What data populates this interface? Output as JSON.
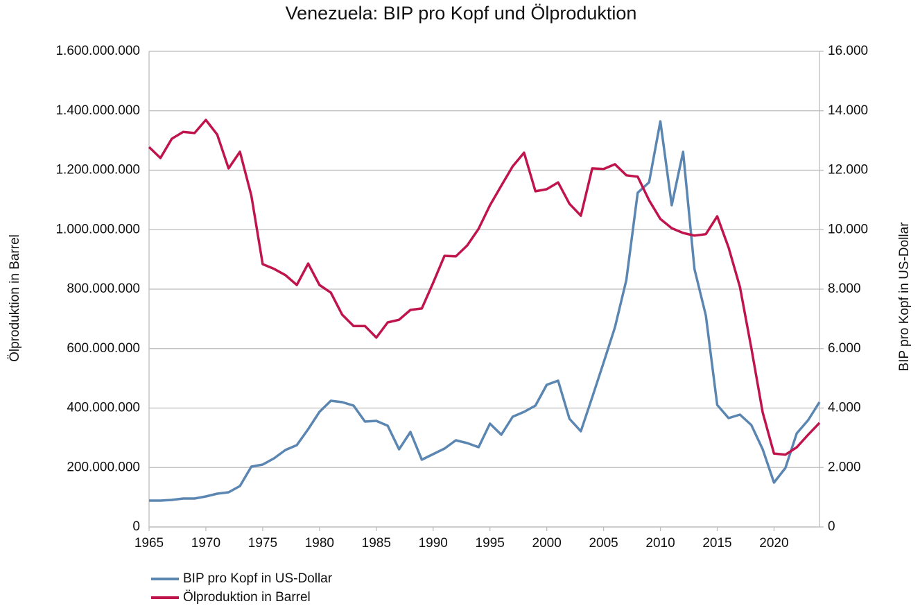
{
  "chart_data": {
    "type": "line",
    "title": "Venezuela: BIP pro Kopf und Ölproduktion",
    "ylabel": "Ölproduktion in Barrel",
    "y2label": "BIP pro Kopf in US-Dollar",
    "x": [
      1965,
      1966,
      1967,
      1968,
      1969,
      1970,
      1971,
      1972,
      1973,
      1974,
      1975,
      1976,
      1977,
      1978,
      1979,
      1980,
      1981,
      1982,
      1983,
      1984,
      1985,
      1986,
      1987,
      1988,
      1989,
      1990,
      1991,
      1992,
      1993,
      1994,
      1995,
      1996,
      1997,
      1998,
      1999,
      2000,
      2001,
      2002,
      2003,
      2004,
      2005,
      2006,
      2007,
      2008,
      2009,
      2010,
      2011,
      2012,
      2013,
      2014,
      2015,
      2016,
      2017,
      2018,
      2019,
      2020,
      2021,
      2022,
      2023,
      2024
    ],
    "xlim": [
      1965,
      2024
    ],
    "xticks": [
      1965,
      1970,
      1975,
      1980,
      1985,
      1990,
      1995,
      2000,
      2005,
      2010,
      2015,
      2020
    ],
    "ylim": [
      0,
      1600000000
    ],
    "yticks": [
      0,
      {
        "value": 200000000,
        "label": "200.000.000"
      },
      {
        "value": 400000000,
        "label": "400.000.000"
      },
      {
        "value": 600000000,
        "label": "600.000.000"
      },
      {
        "value": 800000000,
        "label": "800.000.000"
      },
      {
        "value": 1000000000,
        "label": "1.000.000.000"
      },
      {
        "value": 1200000000,
        "label": "1.200.000.000"
      },
      {
        "value": 1400000000,
        "label": "1.400.000.000"
      },
      {
        "value": 1600000000,
        "label": "1.600.000.000"
      }
    ],
    "y2lim": [
      0,
      16000
    ],
    "y2ticks": [
      0,
      {
        "value": 2000,
        "label": "2.000"
      },
      {
        "value": 4000,
        "label": "4.000"
      },
      {
        "value": 6000,
        "label": "6.000"
      },
      {
        "value": 8000,
        "label": "8.000"
      },
      {
        "value": 10000,
        "label": "10.000"
      },
      {
        "value": 12000,
        "label": "12.000"
      },
      {
        "value": 14000,
        "label": "14.000"
      },
      {
        "value": 16000,
        "label": "16.000"
      }
    ],
    "grid": true,
    "legend": "bottom",
    "series": [
      {
        "name": "BIP pro Kopf in US-Dollar",
        "color": "#5b86b1",
        "axis": "y2",
        "values": [
          886,
          886,
          910,
          956,
          956,
          1026,
          1120,
          1166,
          1376,
          2029,
          2099,
          2309,
          2589,
          2752,
          3289,
          3872,
          4245,
          4198,
          4082,
          3545,
          3569,
          3405,
          2612,
          3195,
          2262,
          2449,
          2636,
          2915,
          2822,
          2682,
          3475,
          3102,
          3708,
          3872,
          4082,
          4781,
          4921,
          3638,
          3219,
          4361,
          5528,
          6717,
          8303,
          11242,
          11592,
          13644,
          10822,
          12618,
          8676,
          7114,
          4105,
          3662,
          3778,
          3429,
          2612,
          1493,
          1983,
          3149,
          3592,
          4198
        ]
      },
      {
        "name": "Ölproduktion in Barrel",
        "color": "#c0144c",
        "axis": "y",
        "values": [
          1278000000,
          1241000000,
          1306000000,
          1329000000,
          1325000000,
          1369000000,
          1320000000,
          1206000000,
          1262000000,
          1115000000,
          884000000,
          868000000,
          847000000,
          814000000,
          886000000,
          814000000,
          788000000,
          714000000,
          676000000,
          676000000,
          637000000,
          688000000,
          697000000,
          730000000,
          735000000,
          821000000,
          912000000,
          910000000,
          947000000,
          1003000000,
          1082000000,
          1148000000,
          1213000000,
          1259000000,
          1129000000,
          1136000000,
          1159000000,
          1087000000,
          1047000000,
          1206000000,
          1204000000,
          1220000000,
          1183000000,
          1178000000,
          1099000000,
          1036000000,
          1005000000,
          989000000,
          980000000,
          985000000,
          1045000000,
          940000000,
          807000000,
          602000000,
          385000000,
          247000000,
          243000000,
          268000000,
          310000000,
          350000000
        ]
      }
    ]
  }
}
